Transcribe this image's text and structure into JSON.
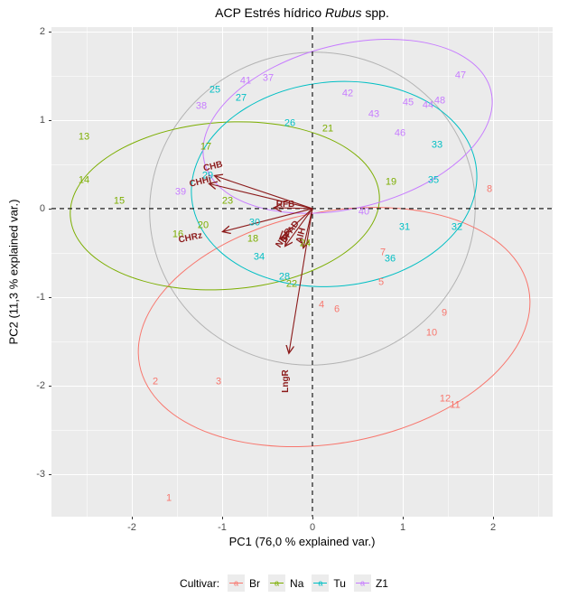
{
  "title": {
    "text_before": "ACP Estrés hídrico ",
    "text_italic": "Rubus",
    "text_after": " spp."
  },
  "axes": {
    "x": {
      "label": "PC1 (76,0  % explained var.)",
      "major_ticks": [
        -2,
        -1,
        0,
        1,
        2
      ],
      "minor_ticks": [
        -2.5,
        -1.5,
        -0.5,
        0.5,
        1.5,
        2.5
      ]
    },
    "y": {
      "label": "PC2 (11,3 % explained var.)",
      "major_ticks": [
        2,
        1,
        0,
        -1,
        -2,
        -3
      ],
      "minor_ticks": [
        1.5,
        0.5,
        -0.5,
        -1.5,
        -2.5
      ]
    }
  },
  "legend": {
    "title": "Cultivar:",
    "key_glyph": "a",
    "items": [
      {
        "label": "Br",
        "color": "#F8766D"
      },
      {
        "label": "Na",
        "color": "#7CAE00"
      },
      {
        "label": "Tu",
        "color": "#00BFC4"
      },
      {
        "label": "Z1",
        "color": "#C77CFF"
      }
    ]
  },
  "colors": {
    "panel_bg": "#EBEBEB",
    "grid": "#FFFFFF",
    "tick_text": "#4D4D4D",
    "arrow": "#8B1A1A",
    "overall_ellipse": "#B3B3B3",
    "zero_line": "#000000"
  },
  "chart_data": {
    "type": "scatter",
    "title": "ACP Estrés hídrico Rubus spp.",
    "xlabel": "PC1 (76,0  % explained var.)",
    "ylabel": "PC2 (11,3 % explained var.)",
    "xlim": [
      -2.89,
      2.66
    ],
    "ylim": [
      -3.48,
      2.05
    ],
    "legend_position": "bottom",
    "grid": true,
    "series": [
      {
        "name": "Br",
        "color": "#F8766D",
        "points": [
          [
            "1",
            -1.59,
            -3.28
          ],
          [
            "2",
            -1.74,
            -1.96
          ],
          [
            "3",
            -1.04,
            -1.96
          ],
          [
            "4",
            0.1,
            -1.09
          ],
          [
            "5",
            0.76,
            -0.84
          ],
          [
            "6",
            0.27,
            -1.14
          ],
          [
            "7",
            0.78,
            -0.5
          ],
          [
            "8",
            1.96,
            0.21
          ],
          [
            "9",
            1.46,
            -1.18
          ],
          [
            "10",
            1.32,
            -1.41
          ],
          [
            "11",
            1.58,
            -2.23
          ],
          [
            "12",
            1.47,
            -2.15
          ]
        ]
      },
      {
        "name": "Na",
        "color": "#7CAE00",
        "points": [
          [
            "13",
            -2.53,
            0.81
          ],
          [
            "14",
            -2.53,
            0.32
          ],
          [
            "15",
            -2.14,
            0.08
          ],
          [
            "16",
            -1.49,
            -0.3
          ],
          [
            "17",
            -1.18,
            0.69
          ],
          [
            "18",
            -0.66,
            -0.35
          ],
          [
            "19",
            0.87,
            0.3
          ],
          [
            "20",
            -1.21,
            -0.19
          ],
          [
            "21",
            0.17,
            0.9
          ],
          [
            "22",
            -0.23,
            -0.86
          ],
          [
            "23",
            -0.94,
            0.08
          ],
          [
            "24",
            -0.08,
            -0.4
          ]
        ]
      },
      {
        "name": "Tu",
        "color": "#00BFC4",
        "points": [
          [
            "25",
            -1.08,
            1.34
          ],
          [
            "26",
            -0.25,
            0.96
          ],
          [
            "27",
            -0.79,
            1.24
          ],
          [
            "28",
            -0.31,
            -0.78
          ],
          [
            "29",
            -1.16,
            0.37
          ],
          [
            "30",
            -0.64,
            -0.16
          ],
          [
            "31",
            1.02,
            -0.21
          ],
          [
            "32",
            1.6,
            -0.22
          ],
          [
            "33",
            1.38,
            0.71
          ],
          [
            "34",
            -0.59,
            -0.55
          ],
          [
            "35",
            1.34,
            0.32
          ],
          [
            "36",
            0.86,
            -0.57
          ]
        ]
      },
      {
        "name": "Z1",
        "color": "#C77CFF",
        "points": [
          [
            "37",
            -0.49,
            1.47
          ],
          [
            "38",
            -1.23,
            1.15
          ],
          [
            "39",
            -1.46,
            0.18
          ],
          [
            "40",
            0.57,
            -0.04
          ],
          [
            "41",
            -0.74,
            1.44
          ],
          [
            "42",
            0.39,
            1.3
          ],
          [
            "43",
            0.68,
            1.06
          ],
          [
            "44",
            1.28,
            1.16
          ],
          [
            "45",
            1.06,
            1.19
          ],
          [
            "46",
            0.97,
            0.85
          ],
          [
            "47",
            1.64,
            1.5
          ],
          [
            "48",
            1.41,
            1.21
          ]
        ]
      }
    ],
    "group_ellipses": [
      {
        "name": "Br",
        "color": "#F8766D",
        "cx": 0.24,
        "cy": -1.34,
        "rx": 2.19,
        "ry": 1.3,
        "rot": -11
      },
      {
        "name": "Na",
        "color": "#7CAE00",
        "cx": -0.97,
        "cy": 0.03,
        "rx": 1.71,
        "ry": 0.94,
        "rot": -4
      },
      {
        "name": "Tu",
        "color": "#00BFC4",
        "cx": 0.24,
        "cy": 0.27,
        "rx": 1.58,
        "ry": 1.15,
        "rot": -6
      },
      {
        "name": "Z1",
        "color": "#C77CFF",
        "cx": 0.39,
        "cy": 0.93,
        "rx": 1.63,
        "ry": 0.92,
        "rot": -14
      }
    ],
    "overall_ellipse": {
      "cx": 0.0,
      "cy": 0.0,
      "rx": 1.8,
      "ry": 1.76,
      "rot": -10,
      "color": "#B3B3B3"
    },
    "loadings": [
      {
        "label": "CHB",
        "x2": -1.08,
        "y2": 0.37,
        "lx": -1.1,
        "ly": 0.47,
        "rot": -14
      },
      {
        "label": "CHHj",
        "x2": -1.14,
        "y2": 0.28,
        "lx": -1.24,
        "ly": 0.3,
        "rot": -14
      },
      {
        "label": "CHRz",
        "x2": -0.99,
        "y2": -0.26,
        "lx": -1.35,
        "ly": -0.34,
        "rot": -12
      },
      {
        "label": "LngR",
        "x2": -0.26,
        "y2": -1.63,
        "lx": -0.29,
        "ly": -1.95,
        "rot": -90
      },
      {
        "label": "RFB",
        "x2": -0.42,
        "y2": 0.01,
        "lx": -0.3,
        "ly": 0.04,
        "rot": 0
      },
      {
        "label": "SPAD",
        "x2": -0.3,
        "y2": -0.42,
        "lx": -0.24,
        "ly": -0.27,
        "rot": -55
      },
      {
        "label": "NmR",
        "x2": -0.36,
        "y2": -0.34,
        "lx": -0.31,
        "ly": -0.34,
        "rot": -55
      },
      {
        "label": "AlH",
        "x2": -0.1,
        "y2": -0.44,
        "lx": -0.12,
        "ly": -0.31,
        "rot": -75
      }
    ],
    "zero_lines": {
      "x": 0,
      "y": 0
    }
  }
}
